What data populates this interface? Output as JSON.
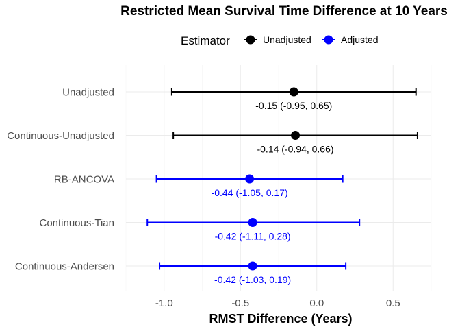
{
  "chart_data": {
    "type": "forest",
    "title": "Restricted Mean Survival Time Difference at 10 Years",
    "xlabel": "RMST Difference (Years)",
    "ylabel": "",
    "xlim": [
      -1.25,
      0.75
    ],
    "xticks": [
      -1.0,
      -0.5,
      0.0,
      0.5
    ],
    "xtick_labels": [
      "-1.0",
      "-0.5",
      "0.0",
      "0.5"
    ],
    "grid": true,
    "legend": {
      "title": "Estimator",
      "position": "top",
      "entries": [
        {
          "label": "Unadjusted",
          "color": "#000000"
        },
        {
          "label": "Adjusted",
          "color": "#0000ff"
        }
      ]
    },
    "rows": [
      {
        "name": "Unadjusted",
        "estimate": -0.15,
        "lower": -0.95,
        "upper": 0.65,
        "group": "Unadjusted",
        "annotation": "-0.15 (-0.95, 0.65)"
      },
      {
        "name": "Continuous-Unadjusted",
        "estimate": -0.14,
        "lower": -0.94,
        "upper": 0.66,
        "group": "Unadjusted",
        "annotation": "-0.14 (-0.94, 0.66)"
      },
      {
        "name": "RB-ANCOVA",
        "estimate": -0.44,
        "lower": -1.05,
        "upper": 0.17,
        "group": "Adjusted",
        "annotation": "-0.44 (-1.05, 0.17)"
      },
      {
        "name": "Continuous-Tian",
        "estimate": -0.42,
        "lower": -1.11,
        "upper": 0.28,
        "group": "Adjusted",
        "annotation": "-0.42 (-1.11, 0.28)"
      },
      {
        "name": "Continuous-Andersen",
        "estimate": -0.42,
        "lower": -1.03,
        "upper": 0.19,
        "group": "Adjusted",
        "annotation": "-0.42 (-1.03, 0.19)"
      }
    ]
  }
}
